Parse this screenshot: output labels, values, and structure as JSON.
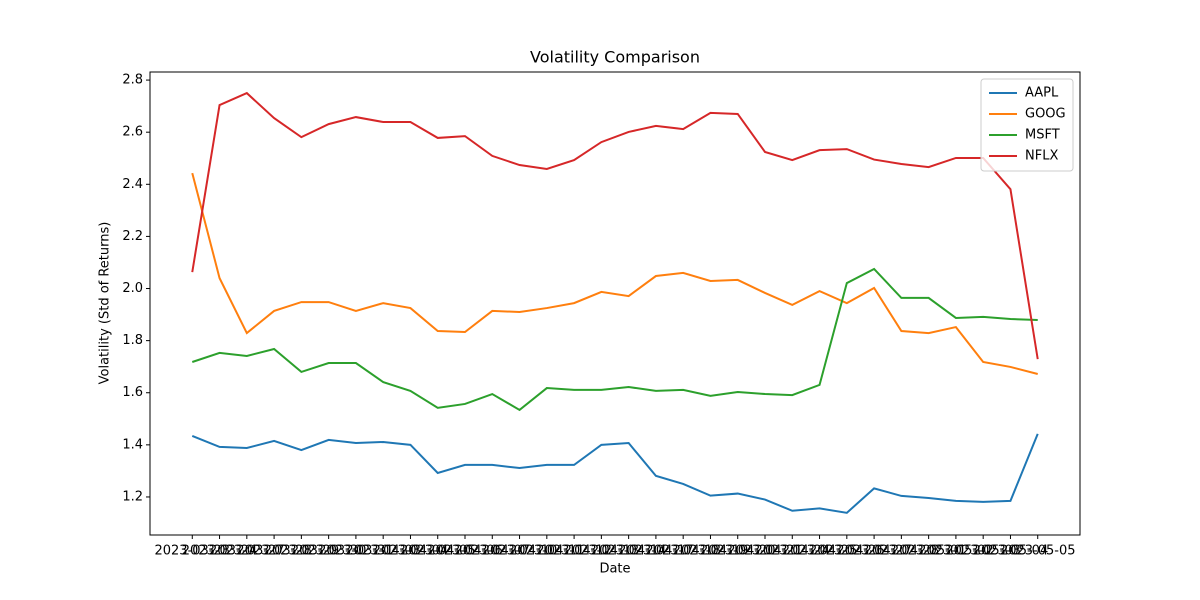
{
  "chart_data": {
    "type": "line",
    "title": "Volatility Comparison",
    "x_label": "Date",
    "y_label": "Volatility (Std of Returns)",
    "categories": [
      "2023-03-23",
      "2023-03-24",
      "2023-03-27",
      "2023-03-28",
      "2023-03-29",
      "2023-03-30",
      "2023-03-31",
      "2023-04-03",
      "2023-04-04",
      "2023-04-05",
      "2023-04-06",
      "2023-04-07",
      "2023-04-10",
      "2023-04-11",
      "2023-04-12",
      "2023-04-13",
      "2023-04-14",
      "2023-04-17",
      "2023-04-18",
      "2023-04-19",
      "2023-04-20",
      "2023-04-21",
      "2023-04-24",
      "2023-04-25",
      "2023-04-26",
      "2023-04-27",
      "2023-04-28",
      "2023-05-01",
      "2023-05-02",
      "2023-05-03",
      "2023-05-04",
      "2023-05-05"
    ],
    "series": [
      {
        "name": "AAPL",
        "color": "#1f77b4",
        "values": [
          1.434,
          1.392,
          1.388,
          1.415,
          1.38,
          1.419,
          1.407,
          1.411,
          1.4,
          1.292,
          1.323,
          1.323,
          1.311,
          1.323,
          1.323,
          1.4,
          1.407,
          1.281,
          1.25,
          1.205,
          1.213,
          1.19,
          1.147,
          1.156,
          1.139,
          1.233,
          1.204,
          1.196,
          1.185,
          1.181,
          1.185,
          1.442
        ]
      },
      {
        "name": "GOOG",
        "color": "#ff7f0e",
        "values": [
          2.443,
          2.04,
          1.829,
          1.914,
          1.948,
          1.948,
          1.914,
          1.944,
          1.925,
          1.837,
          1.833,
          1.914,
          1.91,
          1.925,
          1.944,
          1.987,
          1.971,
          2.048,
          2.06,
          2.029,
          2.033,
          1.983,
          1.937,
          1.99,
          1.944,
          2.002,
          1.837,
          1.829,
          1.852,
          1.718,
          1.699,
          1.672
        ]
      },
      {
        "name": "MSFT",
        "color": "#2ca02c",
        "values": [
          1.718,
          1.753,
          1.741,
          1.768,
          1.68,
          1.714,
          1.714,
          1.641,
          1.607,
          1.542,
          1.557,
          1.595,
          1.534,
          1.618,
          1.611,
          1.611,
          1.622,
          1.607,
          1.611,
          1.588,
          1.603,
          1.595,
          1.591,
          1.63,
          2.021,
          2.075,
          1.964,
          1.964,
          1.887,
          1.891,
          1.883,
          1.879
        ]
      },
      {
        "name": "NFLX",
        "color": "#d62728",
        "values": [
          2.063,
          2.704,
          2.75,
          2.654,
          2.581,
          2.631,
          2.658,
          2.639,
          2.639,
          2.578,
          2.585,
          2.509,
          2.474,
          2.459,
          2.493,
          2.562,
          2.601,
          2.624,
          2.612,
          2.674,
          2.67,
          2.524,
          2.493,
          2.531,
          2.535,
          2.495,
          2.478,
          2.466,
          2.501,
          2.501,
          2.381,
          1.729
        ]
      }
    ],
    "ylim": [
      1.054,
      2.831
    ],
    "yticks": [
      1.2,
      1.4,
      1.6,
      1.8,
      {
        "value": 2.0,
        "label": "2.0"
      },
      2.2,
      2.4,
      2.6,
      2.8
    ],
    "legend": "upper right"
  }
}
